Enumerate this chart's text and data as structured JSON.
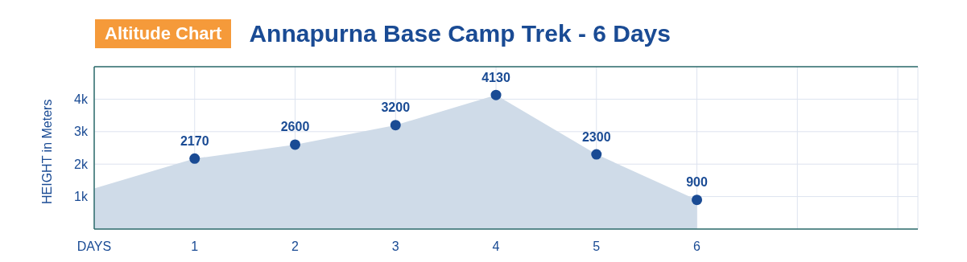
{
  "chart_data": {
    "type": "area",
    "title": "Annapurna Base Camp Trek - 6 Days",
    "subtitle": "Altitude Chart",
    "ylabel": "HEIGHT in Meters",
    "series": [
      {
        "x": [
          0,
          1,
          2,
          3,
          4,
          5,
          6
        ],
        "values": [
          1250,
          2170,
          2600,
          3200,
          4130,
          2300,
          900
        ],
        "color": "#cfdbe8",
        "marker": "none"
      },
      {
        "type": "scatter",
        "x": [
          1,
          2,
          3,
          4,
          5,
          6
        ],
        "values": [
          2170,
          2600,
          3200,
          4130,
          2300,
          900
        ],
        "color": "#1a4b94",
        "marker": "circle",
        "value_labels": [
          "2170",
          "2600",
          "3200",
          "4130",
          "2300",
          "900"
        ]
      }
    ],
    "xlim": [
      0,
      8.2
    ],
    "xticks": [
      {
        "value": 0,
        "label": "DAYS"
      },
      1,
      2,
      3,
      4,
      5,
      6,
      {
        "value": 7,
        "label": null
      },
      {
        "value": 8,
        "label": null
      }
    ],
    "ylim": [
      0,
      5000
    ],
    "yticks": [
      {
        "value": 1000,
        "label": "1k"
      },
      {
        "value": 2000,
        "label": "2k"
      },
      {
        "value": 3000,
        "label": "3k"
      },
      {
        "value": 4000,
        "label": "4k"
      }
    ],
    "grid": true,
    "legend": false
  }
}
